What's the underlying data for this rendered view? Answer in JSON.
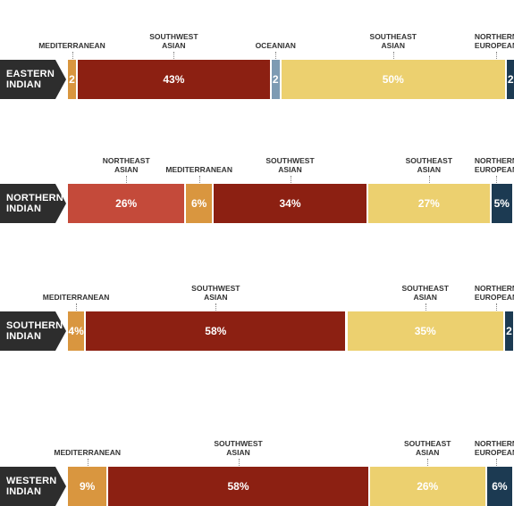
{
  "colors": {
    "label_bg": "#2d2d2d",
    "NORTHEAST ASIAN": "#c44a3a",
    "MEDITERRANEAN": "#d9963f",
    "SOUTHWEST ASIAN": "#8c2012",
    "OCEANIAN": "#7d9bb3",
    "SOUTHEAST ASIAN": "#ecd06f",
    "NORTHERN EUROPEAN": "#1c3a52"
  },
  "chart_data": {
    "type": "bar",
    "orientation": "horizontal",
    "stacked": true,
    "rows": [
      {
        "label": [
          "EASTERN",
          "INDIAN"
        ],
        "segments": [
          {
            "category": [
              "MEDITERRANEAN"
            ],
            "value": 2,
            "display": "2"
          },
          {
            "category": [
              "SOUTHWEST",
              "ASIAN"
            ],
            "value": 43,
            "display": "43%"
          },
          {
            "category": [
              "OCEANIAN"
            ],
            "value": 2,
            "display": "2"
          },
          {
            "category": [
              "SOUTHEAST",
              "ASIAN"
            ],
            "value": 50,
            "display": "50%"
          },
          {
            "category": [
              "NORTHERN",
              "EUROPEAN"
            ],
            "value": 2,
            "display": "2"
          }
        ]
      },
      {
        "label": [
          "NORTHERN",
          "INDIAN"
        ],
        "segments": [
          {
            "category": [
              "NORTHEAST",
              "ASIAN"
            ],
            "value": 26,
            "display": "26%"
          },
          {
            "category": [
              "MEDITERRANEAN"
            ],
            "value": 6,
            "display": "6%"
          },
          {
            "category": [
              "SOUTHWEST",
              "ASIAN"
            ],
            "value": 34,
            "display": "34%"
          },
          {
            "category": [
              "SOUTHEAST",
              "ASIAN"
            ],
            "value": 27,
            "display": "27%"
          },
          {
            "category": [
              "NORTHERN",
              "EUROPEAN"
            ],
            "value": 5,
            "display": "5%"
          }
        ]
      },
      {
        "label": [
          "SOUTHERN",
          "INDIAN"
        ],
        "segments": [
          {
            "category": [
              "MEDITERRANEAN"
            ],
            "value": 4,
            "display": "4%"
          },
          {
            "category": [
              "SOUTHWEST",
              "ASIAN"
            ],
            "value": 58,
            "display": "58%"
          },
          {
            "category": [
              "SOUTHEAST",
              "ASIAN"
            ],
            "value": 35,
            "display": "35%"
          },
          {
            "category": [
              "NORTHERN",
              "EUROPEAN"
            ],
            "value": 2,
            "display": "2"
          }
        ]
      },
      {
        "label": [
          "WESTERN",
          "INDIAN"
        ],
        "segments": [
          {
            "category": [
              "MEDITERRANEAN"
            ],
            "value": 9,
            "display": "9%"
          },
          {
            "category": [
              "SOUTHWEST",
              "ASIAN"
            ],
            "value": 58,
            "display": "58%"
          },
          {
            "category": [
              "SOUTHEAST",
              "ASIAN"
            ],
            "value": 26,
            "display": "26%"
          },
          {
            "category": [
              "NORTHERN",
              "EUROPEAN"
            ],
            "value": 6,
            "display": "6%"
          }
        ]
      }
    ]
  }
}
